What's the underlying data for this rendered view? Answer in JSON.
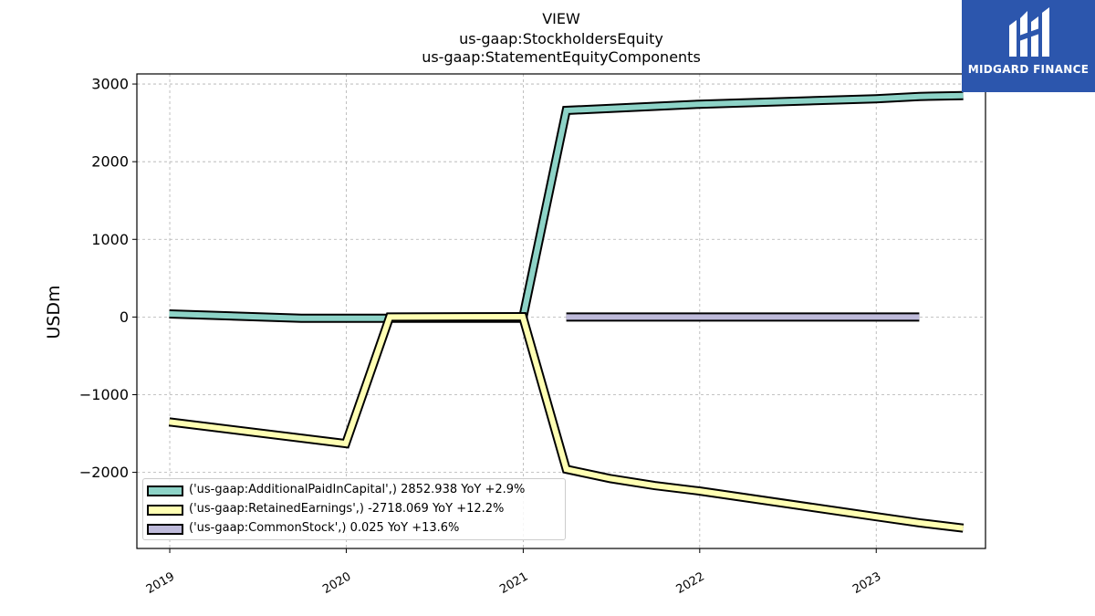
{
  "title_lines": [
    "VIEW",
    "us-gaap:StockholdersEquity",
    "us-gaap:StatementEquityComponents"
  ],
  "logo": {
    "text": "MIDGARD FINANCE",
    "bg_color": "#2c56ad"
  },
  "chart_data": {
    "type": "line",
    "title": "VIEW\nus-gaap:StockholdersEquity\nus-gaap:StatementEquityComponents",
    "xlabel": "",
    "ylabel": "USDm",
    "xlim": [
      "2018-10-25",
      "2023-08-15"
    ],
    "ylim": [
      -2980,
      3130
    ],
    "x_ticks": [
      "2019",
      "2020",
      "2021",
      "2022",
      "2023"
    ],
    "y_ticks": [
      3000,
      2000,
      1000,
      0,
      -1000,
      -2000
    ],
    "y_tick_labels": [
      "3000",
      "2000",
      "1000",
      "0",
      "−1000",
      "−2000"
    ],
    "grid": true,
    "legend_position": "lower-left",
    "series": [
      {
        "name": "('us-gaap:AdditionalPaidInCapital',) 2852.938 YoY +2.9%",
        "color": "#8dd3c7",
        "points": [
          [
            "2018-12-31",
            40
          ],
          [
            "2019-09-30",
            -15
          ],
          [
            "2019-12-31",
            -15
          ],
          [
            "2020-03-31",
            -15
          ],
          [
            "2020-12-31",
            -15
          ],
          [
            "2021-03-31",
            2660
          ],
          [
            "2021-12-31",
            2740
          ],
          [
            "2022-12-31",
            2810
          ],
          [
            "2023-03-31",
            2840
          ],
          [
            "2023-06-30",
            2850
          ]
        ]
      },
      {
        "name": "('us-gaap:RetainedEarnings',) -2718.069 YoY +12.2%",
        "color": "#ffffb3",
        "points": [
          [
            "2018-12-31",
            -1350
          ],
          [
            "2019-12-31",
            -1630
          ],
          [
            "2020-03-31",
            0
          ],
          [
            "2020-12-31",
            5
          ],
          [
            "2021-03-31",
            -1960
          ],
          [
            "2021-06-30",
            -2080
          ],
          [
            "2021-09-30",
            -2170
          ],
          [
            "2021-12-31",
            -2240
          ],
          [
            "2022-12-31",
            -2570
          ],
          [
            "2023-03-31",
            -2650
          ],
          [
            "2023-06-30",
            -2718
          ]
        ]
      },
      {
        "name": "('us-gaap:CommonStock',) 0.025 YoY +13.6%",
        "color": "#bebada",
        "points": [
          [
            "2021-03-31",
            0.025
          ],
          [
            "2023-03-31",
            0.025
          ]
        ]
      }
    ]
  }
}
